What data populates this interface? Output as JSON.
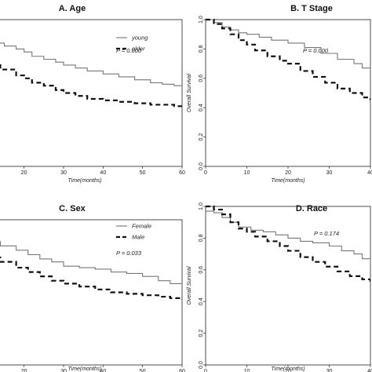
{
  "chart_data": [
    {
      "type": "line",
      "title": "A. Age",
      "xlabel": "Time(months)",
      "ylabel": "",
      "xlim": [
        0,
        60
      ],
      "ylim": [
        0,
        1.0
      ],
      "xticks": [
        20,
        30,
        40,
        50,
        60
      ],
      "yticks": [],
      "pvalue": "P = 0.000",
      "legend": "top-right",
      "series": [
        {
          "name": "young",
          "style": "solid",
          "color": "#777777",
          "x": [
            0,
            2,
            5,
            8,
            12,
            15,
            18,
            20,
            22,
            25,
            28,
            30,
            33,
            36,
            40,
            44,
            48,
            52,
            55,
            58,
            60
          ],
          "y": [
            0.93,
            0.92,
            0.9,
            0.87,
            0.84,
            0.82,
            0.8,
            0.78,
            0.75,
            0.73,
            0.71,
            0.69,
            0.67,
            0.65,
            0.63,
            0.61,
            0.59,
            0.57,
            0.56,
            0.55,
            0.55
          ]
        },
        {
          "name": "older",
          "style": "dashed",
          "color": "#111111",
          "x": [
            0,
            3,
            6,
            10,
            14,
            18,
            20,
            22,
            25,
            28,
            30,
            33,
            36,
            40,
            44,
            48,
            52,
            55,
            58,
            60
          ],
          "y": [
            0.75,
            0.74,
            0.72,
            0.69,
            0.66,
            0.62,
            0.6,
            0.57,
            0.55,
            0.52,
            0.5,
            0.48,
            0.46,
            0.45,
            0.44,
            0.43,
            0.42,
            0.42,
            0.41,
            0.4
          ]
        }
      ]
    },
    {
      "type": "line",
      "title": "B. T Stage",
      "xlabel": "Time(months)",
      "ylabel": "Overall Survival",
      "xlim": [
        0,
        40
      ],
      "ylim": [
        0,
        1.0
      ],
      "xticks": [
        0,
        10,
        20,
        30,
        40
      ],
      "yticks": [
        "0.0",
        "0.2",
        "0.4",
        "0.6",
        "0.8",
        "1.0"
      ],
      "pvalue": "P = 0.000",
      "legend": "none",
      "series": [
        {
          "name": "",
          "style": "solid",
          "color": "#777777",
          "x": [
            0,
            2,
            4,
            6,
            8,
            10,
            13,
            16,
            20,
            24,
            28,
            32,
            36,
            38,
            40
          ],
          "y": [
            1.0,
            0.98,
            0.95,
            0.93,
            0.91,
            0.9,
            0.88,
            0.86,
            0.84,
            0.81,
            0.77,
            0.73,
            0.7,
            0.67,
            0.65
          ]
        },
        {
          "name": "",
          "style": "dashed",
          "color": "#111111",
          "x": [
            0,
            2,
            4,
            6,
            8,
            10,
            12,
            15,
            18,
            20,
            23,
            26,
            29,
            32,
            35,
            38,
            40
          ],
          "y": [
            1.0,
            0.97,
            0.94,
            0.9,
            0.86,
            0.83,
            0.79,
            0.75,
            0.72,
            0.7,
            0.65,
            0.61,
            0.57,
            0.53,
            0.5,
            0.47,
            0.45
          ]
        }
      ]
    },
    {
      "type": "line",
      "title": "C. Sex",
      "xlabel": "Time(months)",
      "ylabel": "",
      "xlim": [
        0,
        60
      ],
      "ylim": [
        0,
        1.0
      ],
      "xticks": [
        20,
        30,
        40,
        50,
        60
      ],
      "yticks": [],
      "pvalue": "P = 0.033",
      "legend": "top-right",
      "series": [
        {
          "name": "Female",
          "style": "solid",
          "color": "#777777",
          "x": [
            0,
            3,
            6,
            10,
            14,
            18,
            21,
            24,
            27,
            30,
            34,
            38,
            42,
            46,
            50,
            54,
            57,
            60
          ],
          "y": [
            0.93,
            0.91,
            0.88,
            0.85,
            0.82,
            0.79,
            0.76,
            0.73,
            0.71,
            0.68,
            0.67,
            0.66,
            0.64,
            0.63,
            0.61,
            0.58,
            0.56,
            0.55
          ]
        },
        {
          "name": "Male",
          "style": "dashed",
          "color": "#111111",
          "x": [
            0,
            3,
            6,
            10,
            14,
            18,
            21,
            24,
            27,
            30,
            34,
            38,
            42,
            46,
            50,
            54,
            57,
            60
          ],
          "y": [
            0.82,
            0.8,
            0.77,
            0.74,
            0.71,
            0.67,
            0.64,
            0.61,
            0.58,
            0.56,
            0.54,
            0.52,
            0.5,
            0.49,
            0.48,
            0.47,
            0.46,
            0.45
          ]
        }
      ]
    },
    {
      "type": "line",
      "title": "D. Race",
      "xlabel": "Time(months)",
      "ylabel": "Overall Survival",
      "xlim": [
        0,
        40
      ],
      "ylim": [
        0,
        1.0
      ],
      "xticks": [
        0,
        10,
        20,
        30,
        40
      ],
      "yticks": [
        "0.0",
        "0.2",
        "0.4",
        "0.6",
        "0.8",
        "1.0"
      ],
      "pvalue": "P = 0.174",
      "legend": "none",
      "series": [
        {
          "name": "",
          "style": "solid",
          "color": "#777777",
          "x": [
            0,
            2,
            4,
            6,
            8,
            11,
            14,
            17,
            20,
            23,
            26,
            30,
            33,
            36,
            38,
            40
          ],
          "y": [
            0.97,
            0.96,
            0.93,
            0.9,
            0.87,
            0.85,
            0.84,
            0.82,
            0.8,
            0.78,
            0.77,
            0.75,
            0.72,
            0.7,
            0.67,
            0.64
          ]
        },
        {
          "name": "",
          "style": "dashed",
          "color": "#111111",
          "x": [
            0,
            2,
            4,
            6,
            8,
            10,
            12,
            15,
            18,
            20,
            23,
            26,
            29,
            32,
            35,
            38,
            40
          ],
          "y": [
            1.0,
            0.98,
            0.95,
            0.9,
            0.86,
            0.84,
            0.81,
            0.78,
            0.75,
            0.72,
            0.68,
            0.65,
            0.62,
            0.59,
            0.56,
            0.54,
            0.52
          ]
        }
      ]
    }
  ]
}
